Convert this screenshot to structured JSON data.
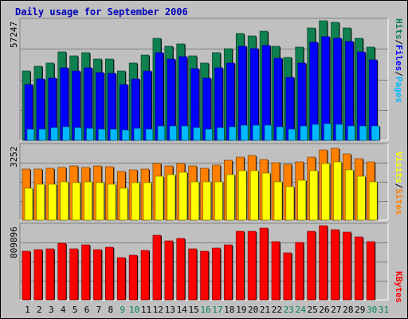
{
  "title": "Daily usage for September 2006",
  "chart_data": {
    "type": "bar",
    "title": "Daily usage for September 2006",
    "categories": [
      "1",
      "2",
      "3",
      "4",
      "5",
      "6",
      "7",
      "8",
      "9",
      "10",
      "11",
      "12",
      "13",
      "14",
      "15",
      "16",
      "17",
      "18",
      "19",
      "20",
      "21",
      "22",
      "23",
      "24",
      "25",
      "26",
      "27",
      "28",
      "29",
      "30",
      "31"
    ],
    "weekend_days": [
      "9",
      "10",
      "16",
      "17",
      "23",
      "24",
      "30",
      "31"
    ],
    "panels": [
      {
        "name": "pages_files_hits",
        "ymax": 57247,
        "ymax_label": "57247",
        "legend": [
          "Pages",
          "/",
          "Files",
          "/",
          "Hits"
        ],
        "series": [
          {
            "name": "Hits",
            "color": "#0f8050",
            "values": [
              33700,
              36300,
              37600,
              43300,
              41200,
              42700,
              39700,
              39700,
              33700,
              37600,
              41800,
              49800,
              46000,
              47100,
              41200,
              37600,
              42700,
              44600,
              52200,
              51100,
              53500,
              46000,
              40500,
              45700,
              55000,
              58500,
              57800,
              55000,
              49800,
              45700,
              null
            ]
          },
          {
            "name": "Files",
            "color": "#0000ff",
            "values": [
              27400,
              29900,
              30500,
              35600,
              34000,
              35300,
              33000,
              32800,
              27400,
              30100,
              34000,
              42700,
              39700,
              40700,
              34900,
              30500,
              35300,
              37800,
              46000,
              44900,
              46400,
              40100,
              30800,
              37900,
              48000,
              50600,
              49700,
              48100,
              43300,
              39200,
              null
            ]
          },
          {
            "name": "Pages",
            "color": "#00b8ff",
            "values": [
              5600,
              5600,
              6300,
              6700,
              6300,
              5900,
              5600,
              5600,
              5200,
              5900,
              5600,
              7000,
              7000,
              7000,
              6300,
              5600,
              6300,
              6700,
              7400,
              7400,
              7400,
              6700,
              5600,
              7000,
              7800,
              8200,
              7800,
              7000,
              7000,
              7000,
              null
            ]
          }
        ]
      },
      {
        "name": "sites_visits",
        "ymax": 3252,
        "ymax_label": "3252",
        "legend": [
          "Sites",
          "/",
          "Visits"
        ],
        "series": [
          {
            "name": "Visits",
            "color": "#ff8000",
            "values": [
              2330,
              2320,
              2350,
              2390,
              2450,
              2390,
              2450,
              2410,
              2200,
              2290,
              2330,
              2580,
              2470,
              2550,
              2450,
              2350,
              2510,
              2700,
              2870,
              2940,
              2760,
              2610,
              2530,
              2630,
              2860,
              3190,
              3260,
              3010,
              2800,
              2630,
              null
            ]
          },
          {
            "name": "Sites",
            "color": "#ffff00",
            "values": [
              1460,
              1630,
              1630,
              1750,
              1690,
              1750,
              1690,
              1630,
              1450,
              1690,
              1690,
              2000,
              2060,
              2180,
              1750,
              1750,
              1750,
              2060,
              2240,
              2240,
              2120,
              1750,
              1500,
              1810,
              2240,
              2560,
              2620,
              2260,
              1990,
              1750,
              null
            ]
          }
        ]
      },
      {
        "name": "kbytes",
        "ymax": 809896,
        "ymax_label": "809896",
        "legend": [
          "KBytes"
        ],
        "series": [
          {
            "name": "KBytes",
            "color": "#ff0000",
            "values": [
              547000,
              566000,
              572000,
              636000,
              579000,
              617000,
              566000,
              598000,
              477000,
              502000,
              560000,
              733000,
              662000,
              694000,
              579000,
              547000,
              585000,
              623000,
              777000,
              777000,
              806000,
              655000,
              528000,
              649000,
              777000,
              835000,
              790000,
              765000,
              714000,
              655000,
              null
            ]
          }
        ]
      }
    ]
  }
}
